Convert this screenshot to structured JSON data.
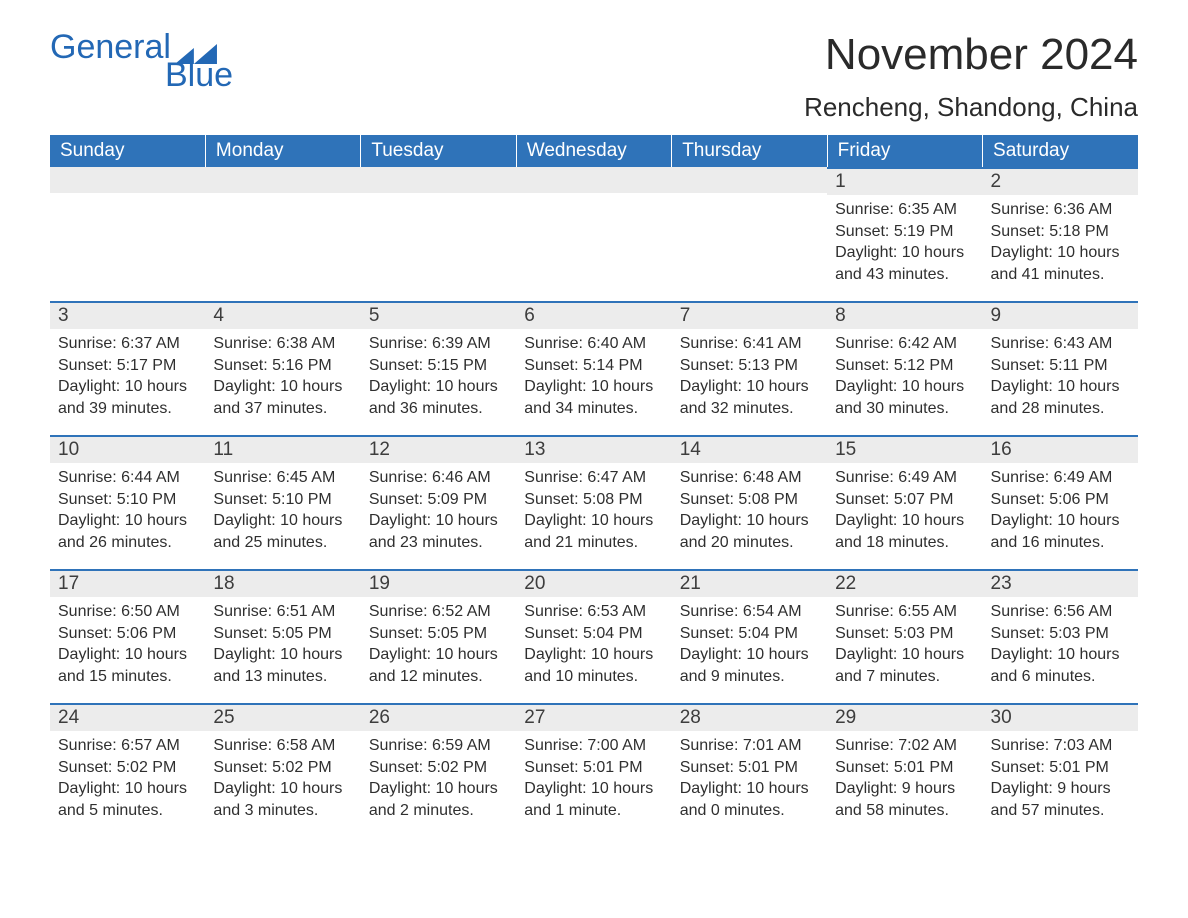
{
  "brand": {
    "word1": "General",
    "word2": "Blue",
    "accent": "#2368b5"
  },
  "title": "November 2024",
  "location": "Rencheng, Shandong, China",
  "colors": {
    "header_bg": "#2f73b9",
    "header_text": "#ffffff",
    "daynum_bg": "#ececec",
    "cell_border": "#2f73b9",
    "text": "#2f2f2f",
    "page_bg": "#ffffff"
  },
  "typography": {
    "title_fontsize": 44,
    "location_fontsize": 26,
    "header_fontsize": 19,
    "body_fontsize": 16
  },
  "weekdays": [
    "Sunday",
    "Monday",
    "Tuesday",
    "Wednesday",
    "Thursday",
    "Friday",
    "Saturday"
  ],
  "weeks": [
    [
      null,
      null,
      null,
      null,
      null,
      {
        "day": "1",
        "sunrise": "Sunrise: 6:35 AM",
        "sunset": "Sunset: 5:19 PM",
        "daylight": "Daylight: 10 hours and 43 minutes."
      },
      {
        "day": "2",
        "sunrise": "Sunrise: 6:36 AM",
        "sunset": "Sunset: 5:18 PM",
        "daylight": "Daylight: 10 hours and 41 minutes."
      }
    ],
    [
      {
        "day": "3",
        "sunrise": "Sunrise: 6:37 AM",
        "sunset": "Sunset: 5:17 PM",
        "daylight": "Daylight: 10 hours and 39 minutes."
      },
      {
        "day": "4",
        "sunrise": "Sunrise: 6:38 AM",
        "sunset": "Sunset: 5:16 PM",
        "daylight": "Daylight: 10 hours and 37 minutes."
      },
      {
        "day": "5",
        "sunrise": "Sunrise: 6:39 AM",
        "sunset": "Sunset: 5:15 PM",
        "daylight": "Daylight: 10 hours and 36 minutes."
      },
      {
        "day": "6",
        "sunrise": "Sunrise: 6:40 AM",
        "sunset": "Sunset: 5:14 PM",
        "daylight": "Daylight: 10 hours and 34 minutes."
      },
      {
        "day": "7",
        "sunrise": "Sunrise: 6:41 AM",
        "sunset": "Sunset: 5:13 PM",
        "daylight": "Daylight: 10 hours and 32 minutes."
      },
      {
        "day": "8",
        "sunrise": "Sunrise: 6:42 AM",
        "sunset": "Sunset: 5:12 PM",
        "daylight": "Daylight: 10 hours and 30 minutes."
      },
      {
        "day": "9",
        "sunrise": "Sunrise: 6:43 AM",
        "sunset": "Sunset: 5:11 PM",
        "daylight": "Daylight: 10 hours and 28 minutes."
      }
    ],
    [
      {
        "day": "10",
        "sunrise": "Sunrise: 6:44 AM",
        "sunset": "Sunset: 5:10 PM",
        "daylight": "Daylight: 10 hours and 26 minutes."
      },
      {
        "day": "11",
        "sunrise": "Sunrise: 6:45 AM",
        "sunset": "Sunset: 5:10 PM",
        "daylight": "Daylight: 10 hours and 25 minutes."
      },
      {
        "day": "12",
        "sunrise": "Sunrise: 6:46 AM",
        "sunset": "Sunset: 5:09 PM",
        "daylight": "Daylight: 10 hours and 23 minutes."
      },
      {
        "day": "13",
        "sunrise": "Sunrise: 6:47 AM",
        "sunset": "Sunset: 5:08 PM",
        "daylight": "Daylight: 10 hours and 21 minutes."
      },
      {
        "day": "14",
        "sunrise": "Sunrise: 6:48 AM",
        "sunset": "Sunset: 5:08 PM",
        "daylight": "Daylight: 10 hours and 20 minutes."
      },
      {
        "day": "15",
        "sunrise": "Sunrise: 6:49 AM",
        "sunset": "Sunset: 5:07 PM",
        "daylight": "Daylight: 10 hours and 18 minutes."
      },
      {
        "day": "16",
        "sunrise": "Sunrise: 6:49 AM",
        "sunset": "Sunset: 5:06 PM",
        "daylight": "Daylight: 10 hours and 16 minutes."
      }
    ],
    [
      {
        "day": "17",
        "sunrise": "Sunrise: 6:50 AM",
        "sunset": "Sunset: 5:06 PM",
        "daylight": "Daylight: 10 hours and 15 minutes."
      },
      {
        "day": "18",
        "sunrise": "Sunrise: 6:51 AM",
        "sunset": "Sunset: 5:05 PM",
        "daylight": "Daylight: 10 hours and 13 minutes."
      },
      {
        "day": "19",
        "sunrise": "Sunrise: 6:52 AM",
        "sunset": "Sunset: 5:05 PM",
        "daylight": "Daylight: 10 hours and 12 minutes."
      },
      {
        "day": "20",
        "sunrise": "Sunrise: 6:53 AM",
        "sunset": "Sunset: 5:04 PM",
        "daylight": "Daylight: 10 hours and 10 minutes."
      },
      {
        "day": "21",
        "sunrise": "Sunrise: 6:54 AM",
        "sunset": "Sunset: 5:04 PM",
        "daylight": "Daylight: 10 hours and 9 minutes."
      },
      {
        "day": "22",
        "sunrise": "Sunrise: 6:55 AM",
        "sunset": "Sunset: 5:03 PM",
        "daylight": "Daylight: 10 hours and 7 minutes."
      },
      {
        "day": "23",
        "sunrise": "Sunrise: 6:56 AM",
        "sunset": "Sunset: 5:03 PM",
        "daylight": "Daylight: 10 hours and 6 minutes."
      }
    ],
    [
      {
        "day": "24",
        "sunrise": "Sunrise: 6:57 AM",
        "sunset": "Sunset: 5:02 PM",
        "daylight": "Daylight: 10 hours and 5 minutes."
      },
      {
        "day": "25",
        "sunrise": "Sunrise: 6:58 AM",
        "sunset": "Sunset: 5:02 PM",
        "daylight": "Daylight: 10 hours and 3 minutes."
      },
      {
        "day": "26",
        "sunrise": "Sunrise: 6:59 AM",
        "sunset": "Sunset: 5:02 PM",
        "daylight": "Daylight: 10 hours and 2 minutes."
      },
      {
        "day": "27",
        "sunrise": "Sunrise: 7:00 AM",
        "sunset": "Sunset: 5:01 PM",
        "daylight": "Daylight: 10 hours and 1 minute."
      },
      {
        "day": "28",
        "sunrise": "Sunrise: 7:01 AM",
        "sunset": "Sunset: 5:01 PM",
        "daylight": "Daylight: 10 hours and 0 minutes."
      },
      {
        "day": "29",
        "sunrise": "Sunrise: 7:02 AM",
        "sunset": "Sunset: 5:01 PM",
        "daylight": "Daylight: 9 hours and 58 minutes."
      },
      {
        "day": "30",
        "sunrise": "Sunrise: 7:03 AM",
        "sunset": "Sunset: 5:01 PM",
        "daylight": "Daylight: 9 hours and 57 minutes."
      }
    ]
  ]
}
